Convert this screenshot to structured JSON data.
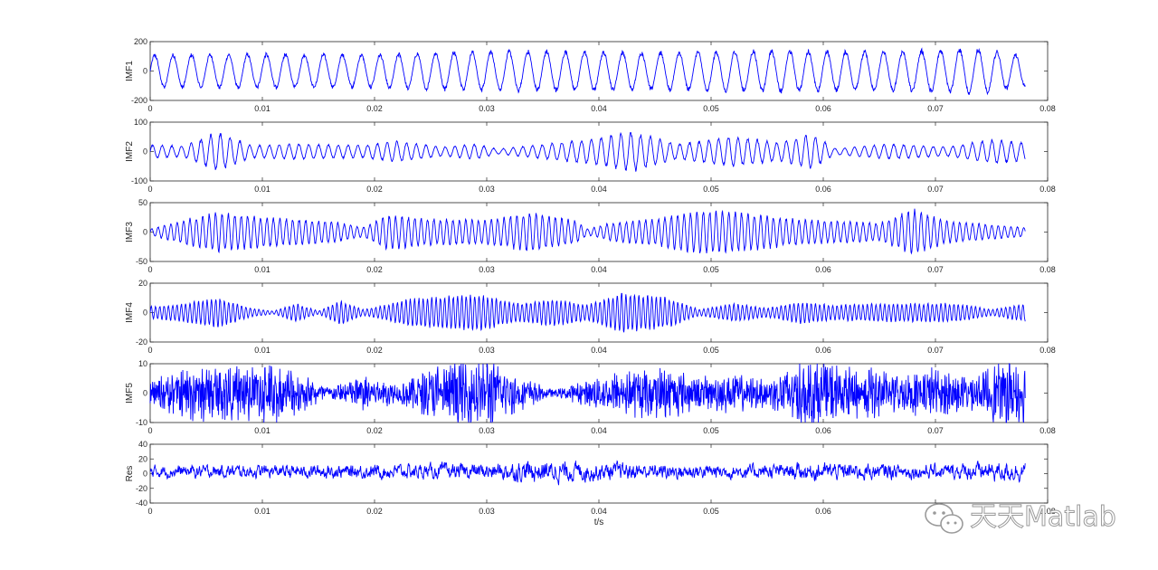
{
  "figure": {
    "xlabel": "t/s",
    "series_color": "#0000ff",
    "axis_color": "#262626",
    "background": "#ffffff"
  },
  "watermark": {
    "text": "天天Matlab",
    "icon": "wechat-icon"
  },
  "chart_data": [
    {
      "type": "line",
      "ylabel": "IMF1",
      "xlim": [
        0,
        0.08
      ],
      "ylim": [
        -200,
        200
      ],
      "yticks": [
        -200,
        0,
        200
      ],
      "xticks": [
        0,
        0.01,
        0.02,
        0.03,
        0.04,
        0.05,
        0.06,
        0.07,
        0.08
      ],
      "xtick_labels": [
        "0",
        "0.01",
        "0.02",
        "0.03",
        "0.04",
        "0.05",
        "0.06",
        "0.07",
        "0.08"
      ],
      "ytick_labels": [
        "-200",
        "0",
        "200"
      ],
      "t_end": 0.078,
      "approx_frequency_hz": 600,
      "envelope": [
        [
          0,
          110
        ],
        [
          0.01,
          115
        ],
        [
          0.02,
          110
        ],
        [
          0.027,
          130
        ],
        [
          0.035,
          135
        ],
        [
          0.045,
          125
        ],
        [
          0.055,
          140
        ],
        [
          0.065,
          130
        ],
        [
          0.074,
          150
        ],
        [
          0.078,
          100
        ]
      ]
    },
    {
      "type": "line",
      "ylabel": "IMF2",
      "xlim": [
        0,
        0.08
      ],
      "ylim": [
        -100,
        100
      ],
      "yticks": [
        -100,
        0,
        100
      ],
      "xticks": [
        0,
        0.01,
        0.02,
        0.03,
        0.04,
        0.05,
        0.06,
        0.07,
        0.08
      ],
      "xtick_labels": [
        "0",
        "0.01",
        "0.02",
        "0.03",
        "0.04",
        "0.05",
        "0.06",
        "0.07",
        "0.08"
      ],
      "ytick_labels": [
        "-100",
        "0",
        "100"
      ],
      "t_end": 0.078,
      "approx_frequency_hz": 1150,
      "envelope": [
        [
          0,
          22
        ],
        [
          0.003,
          18
        ],
        [
          0.006,
          65
        ],
        [
          0.009,
          20
        ],
        [
          0.013,
          25
        ],
        [
          0.019,
          20
        ],
        [
          0.022,
          35
        ],
        [
          0.026,
          15
        ],
        [
          0.029,
          25
        ],
        [
          0.031,
          8
        ],
        [
          0.034,
          20
        ],
        [
          0.039,
          40
        ],
        [
          0.043,
          65
        ],
        [
          0.047,
          25
        ],
        [
          0.052,
          50
        ],
        [
          0.056,
          30
        ],
        [
          0.059,
          60
        ],
        [
          0.061,
          10
        ],
        [
          0.066,
          25
        ],
        [
          0.071,
          15
        ],
        [
          0.075,
          40
        ],
        [
          0.078,
          30
        ]
      ]
    },
    {
      "type": "line",
      "ylabel": "IMF3",
      "xlim": [
        0,
        0.08
      ],
      "ylim": [
        -50,
        50
      ],
      "yticks": [
        -50,
        0,
        50
      ],
      "xticks": [
        0,
        0.01,
        0.02,
        0.03,
        0.04,
        0.05,
        0.06,
        0.07,
        0.08
      ],
      "xtick_labels": [
        "0",
        "0.01",
        "0.02",
        "0.03",
        "0.04",
        "0.05",
        "0.06",
        "0.07",
        "0.08"
      ],
      "ytick_labels": [
        "-50",
        "0",
        "50"
      ],
      "t_end": 0.078,
      "approx_frequency_hz": 1750,
      "envelope": [
        [
          0,
          5
        ],
        [
          0.003,
          20
        ],
        [
          0.006,
          32
        ],
        [
          0.01,
          25
        ],
        [
          0.016,
          18
        ],
        [
          0.019,
          8
        ],
        [
          0.021,
          28
        ],
        [
          0.025,
          22
        ],
        [
          0.03,
          20
        ],
        [
          0.034,
          32
        ],
        [
          0.038,
          18
        ],
        [
          0.039,
          5
        ],
        [
          0.041,
          15
        ],
        [
          0.045,
          22
        ],
        [
          0.049,
          35
        ],
        [
          0.053,
          32
        ],
        [
          0.057,
          22
        ],
        [
          0.061,
          18
        ],
        [
          0.065,
          15
        ],
        [
          0.068,
          38
        ],
        [
          0.071,
          18
        ],
        [
          0.075,
          12
        ],
        [
          0.078,
          8
        ]
      ]
    },
    {
      "type": "line",
      "ylabel": "IMF4",
      "xlim": [
        0,
        0.08
      ],
      "ylim": [
        -20,
        20
      ],
      "yticks": [
        -20,
        0,
        20
      ],
      "xticks": [
        0,
        0.01,
        0.02,
        0.03,
        0.04,
        0.05,
        0.06,
        0.07,
        0.08
      ],
      "xtick_labels": [
        "0",
        "0.01",
        "0.02",
        "0.03",
        "0.04",
        "0.05",
        "0.06",
        "0.07",
        "0.08"
      ],
      "ytick_labels": [
        "-20",
        "0",
        "20"
      ],
      "t_end": 0.078,
      "approx_frequency_hz": 2600,
      "envelope": [
        [
          0,
          4
        ],
        [
          0.003,
          6
        ],
        [
          0.006,
          10
        ],
        [
          0.009,
          3
        ],
        [
          0.011,
          1
        ],
        [
          0.013,
          6
        ],
        [
          0.015,
          1
        ],
        [
          0.017,
          8
        ],
        [
          0.019,
          2
        ],
        [
          0.021,
          5
        ],
        [
          0.023,
          9
        ],
        [
          0.029,
          12
        ],
        [
          0.033,
          6
        ],
        [
          0.036,
          9
        ],
        [
          0.039,
          5
        ],
        [
          0.042,
          13
        ],
        [
          0.046,
          10
        ],
        [
          0.049,
          2
        ],
        [
          0.052,
          6
        ],
        [
          0.055,
          3
        ],
        [
          0.058,
          7
        ],
        [
          0.061,
          5
        ],
        [
          0.065,
          6
        ],
        [
          0.072,
          6
        ],
        [
          0.075,
          2
        ],
        [
          0.078,
          6
        ]
      ]
    },
    {
      "type": "line",
      "ylabel": "IMF5",
      "xlim": [
        0,
        0.08
      ],
      "ylim": [
        -10,
        10
      ],
      "yticks": [
        -10,
        0,
        10
      ],
      "xticks": [
        0,
        0.01,
        0.02,
        0.03,
        0.04,
        0.05,
        0.06,
        0.07,
        0.08
      ],
      "xtick_labels": [
        "0",
        "0.01",
        "0.02",
        "0.03",
        "0.04",
        "0.05",
        "0.06",
        "0.07",
        "0.08"
      ],
      "ytick_labels": [
        "-10",
        "0",
        "10"
      ],
      "t_end": 0.078,
      "approx_frequency_hz": 5200,
      "envelope": [
        [
          0,
          4
        ],
        [
          0.004,
          9
        ],
        [
          0.008,
          8
        ],
        [
          0.011,
          10
        ],
        [
          0.014,
          5
        ],
        [
          0.016,
          2
        ],
        [
          0.019,
          6
        ],
        [
          0.022,
          3
        ],
        [
          0.025,
          8
        ],
        [
          0.03,
          11
        ],
        [
          0.033,
          5
        ],
        [
          0.036,
          1
        ],
        [
          0.039,
          4
        ],
        [
          0.042,
          7
        ],
        [
          0.046,
          8
        ],
        [
          0.049,
          5
        ],
        [
          0.052,
          6
        ],
        [
          0.055,
          4
        ],
        [
          0.058,
          11
        ],
        [
          0.061,
          9
        ],
        [
          0.064,
          8
        ],
        [
          0.067,
          6
        ],
        [
          0.07,
          8
        ],
        [
          0.073,
          5
        ],
        [
          0.076,
          10
        ],
        [
          0.078,
          9
        ]
      ]
    },
    {
      "type": "line",
      "ylabel": "Res",
      "xlim": [
        0,
        0.08
      ],
      "ylim": [
        -40,
        40
      ],
      "yticks": [
        -40,
        -20,
        0,
        20,
        40
      ],
      "xticks": [
        0,
        0.01,
        0.02,
        0.03,
        0.04,
        0.05,
        0.06,
        0.07,
        0.08
      ],
      "xtick_labels": [
        "0",
        "0.01",
        "0.02",
        "0.03",
        "0.04",
        "0.05",
        "0.06",
        "0.07",
        "0.08"
      ],
      "ytick_labels": [
        "-40",
        "-20",
        "0",
        "20",
        "40"
      ],
      "t_end": 0.078,
      "approx_frequency_hz": 0,
      "envelope": [
        [
          0,
          12
        ],
        [
          0.01,
          13
        ],
        [
          0.02,
          14
        ],
        [
          0.03,
          16
        ],
        [
          0.034,
          22
        ],
        [
          0.038,
          20
        ],
        [
          0.045,
          15
        ],
        [
          0.055,
          14
        ],
        [
          0.06,
          18
        ],
        [
          0.07,
          14
        ],
        [
          0.076,
          20
        ],
        [
          0.078,
          18
        ]
      ]
    }
  ]
}
